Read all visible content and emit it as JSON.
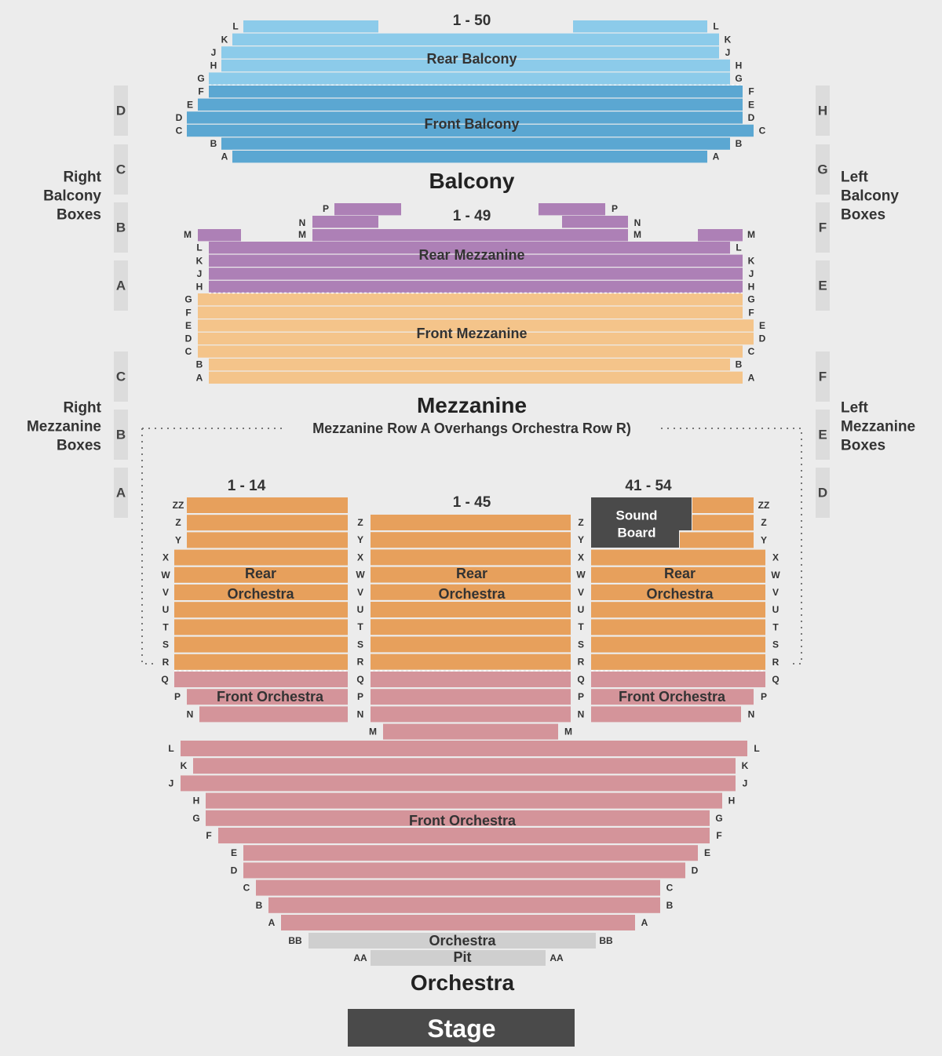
{
  "colors": {
    "rear_balcony": "#8ccbea",
    "front_balcony": "#5ba7d2",
    "rear_mezzanine": "#ad80b6",
    "front_mezzanine": "#f4c48a",
    "rear_orchestra": "#e7a05c",
    "front_orchestra": "#d4949a",
    "pit": "#cfcfcf",
    "sound_board": "#4a4a4a",
    "stage": "#4a4a4a",
    "box": "#dcdcdc",
    "label": "#333333"
  },
  "levels": {
    "balcony": "Balcony",
    "mezzanine": "Mezzanine",
    "orchestra": "Orchestra"
  },
  "ranges": {
    "balcony": "1 - 50",
    "mezzanine": "1 - 49",
    "orchestra_left": "1 - 14",
    "orchestra_center": "1 - 45",
    "orchestra_right": "41 - 54"
  },
  "sections": {
    "rear_balcony": "Rear Balcony",
    "front_balcony": "Front Balcony",
    "rear_mezzanine": "Rear Mezzanine",
    "front_mezzanine": "Front Mezzanine",
    "rear_orchestra_left": [
      "Rear",
      "Orchestra"
    ],
    "rear_orchestra_center": [
      "Rear",
      "Orchestra"
    ],
    "rear_orchestra_right": [
      "Rear",
      "Orchestra"
    ],
    "front_orchestra_left": "Front Orchestra",
    "front_orchestra_right": "Front Orchestra",
    "front_orchestra_main": "Front Orchestra",
    "pit": [
      "Orchestra",
      "Pit"
    ],
    "sound_board": [
      "Sound",
      "Board"
    ],
    "stage": "Stage"
  },
  "note": "Mezzanine Row A Overhangs Orchestra Row R)",
  "boxes": {
    "right_balcony": {
      "label": [
        "Right",
        "Balcony",
        "Boxes"
      ],
      "tabs": [
        "D",
        "C",
        "B",
        "A"
      ]
    },
    "left_balcony": {
      "label": [
        "Left",
        "Balcony",
        "Boxes"
      ],
      "tabs": [
        "H",
        "G",
        "F",
        "E"
      ]
    },
    "right_mezzanine": {
      "label": [
        "Right",
        "Mezzanine",
        "Boxes"
      ],
      "tabs": [
        "C",
        "B",
        "A"
      ]
    },
    "left_mezzanine": {
      "label": [
        "Left",
        "Mezzanine",
        "Boxes"
      ],
      "tabs": [
        "F",
        "E",
        "D"
      ]
    }
  },
  "rows": {
    "rear_balcony": [
      "L",
      "K",
      "J",
      "H",
      "G"
    ],
    "front_balcony": [
      "F",
      "E",
      "D",
      "C",
      "B",
      "A"
    ],
    "rear_mezzanine_top": [
      "P",
      "N",
      "M"
    ],
    "rear_mezzanine": [
      "L",
      "K",
      "J",
      "H"
    ],
    "front_mezzanine": [
      "G",
      "F",
      "E",
      "D",
      "C",
      "B",
      "A"
    ],
    "orchestra_side_rear": [
      "ZZ",
      "Z",
      "Y",
      "X",
      "W",
      "V",
      "U",
      "T",
      "S",
      "R"
    ],
    "orchestra_center_rear": [
      "Z",
      "Y",
      "X",
      "W",
      "V",
      "U",
      "T",
      "S",
      "R"
    ],
    "orchestra_side_front": [
      "Q",
      "P",
      "N"
    ],
    "orchestra_center_front": [
      "Q",
      "P",
      "N",
      "M"
    ],
    "orchestra_main": [
      "L",
      "K",
      "J",
      "H",
      "G",
      "F",
      "E",
      "D",
      "C",
      "B",
      "A"
    ],
    "pit": [
      "BB",
      "AA"
    ]
  }
}
